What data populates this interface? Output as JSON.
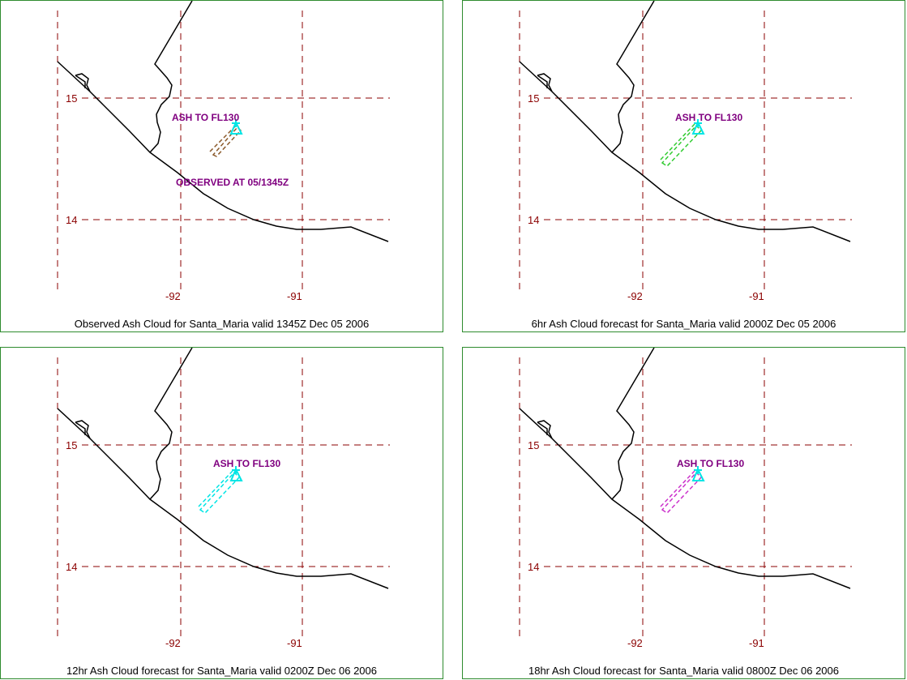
{
  "panels": [
    {
      "caption": "Observed Ash Cloud for Santa_Maria valid 1345Z Dec 05 2006",
      "ash_label": "ASH TO FL130",
      "observed_label": "OBSERVED AT 05/1345Z",
      "ash_color": "#8b5a2b",
      "ash_extent": "short"
    },
    {
      "caption": "6hr Ash Cloud forecast for Santa_Maria valid 2000Z Dec 05 2006",
      "ash_label": "ASH TO FL130",
      "observed_label": "",
      "ash_color": "#33cc33",
      "ash_extent": "long"
    },
    {
      "caption": "12hr Ash Cloud forecast for Santa_Maria valid 0200Z Dec 06 2006",
      "ash_label": "ASH TO FL130",
      "observed_label": "",
      "ash_color": "#00e5e5",
      "ash_extent": "long"
    },
    {
      "caption": "18hr Ash Cloud forecast for Santa_Maria valid 0800Z Dec 06 2006",
      "ash_label": "ASH TO FL130",
      "observed_label": "",
      "ash_color": "#cc33cc",
      "ash_extent": "long"
    }
  ],
  "lat_labels": [
    "15",
    "14"
  ],
  "lon_labels": [
    "-92",
    "-91"
  ],
  "colors": {
    "grid": "#8b0000",
    "annotation": "#800080",
    "volcano": "#00e5e5",
    "border": "#2e8b2e"
  }
}
